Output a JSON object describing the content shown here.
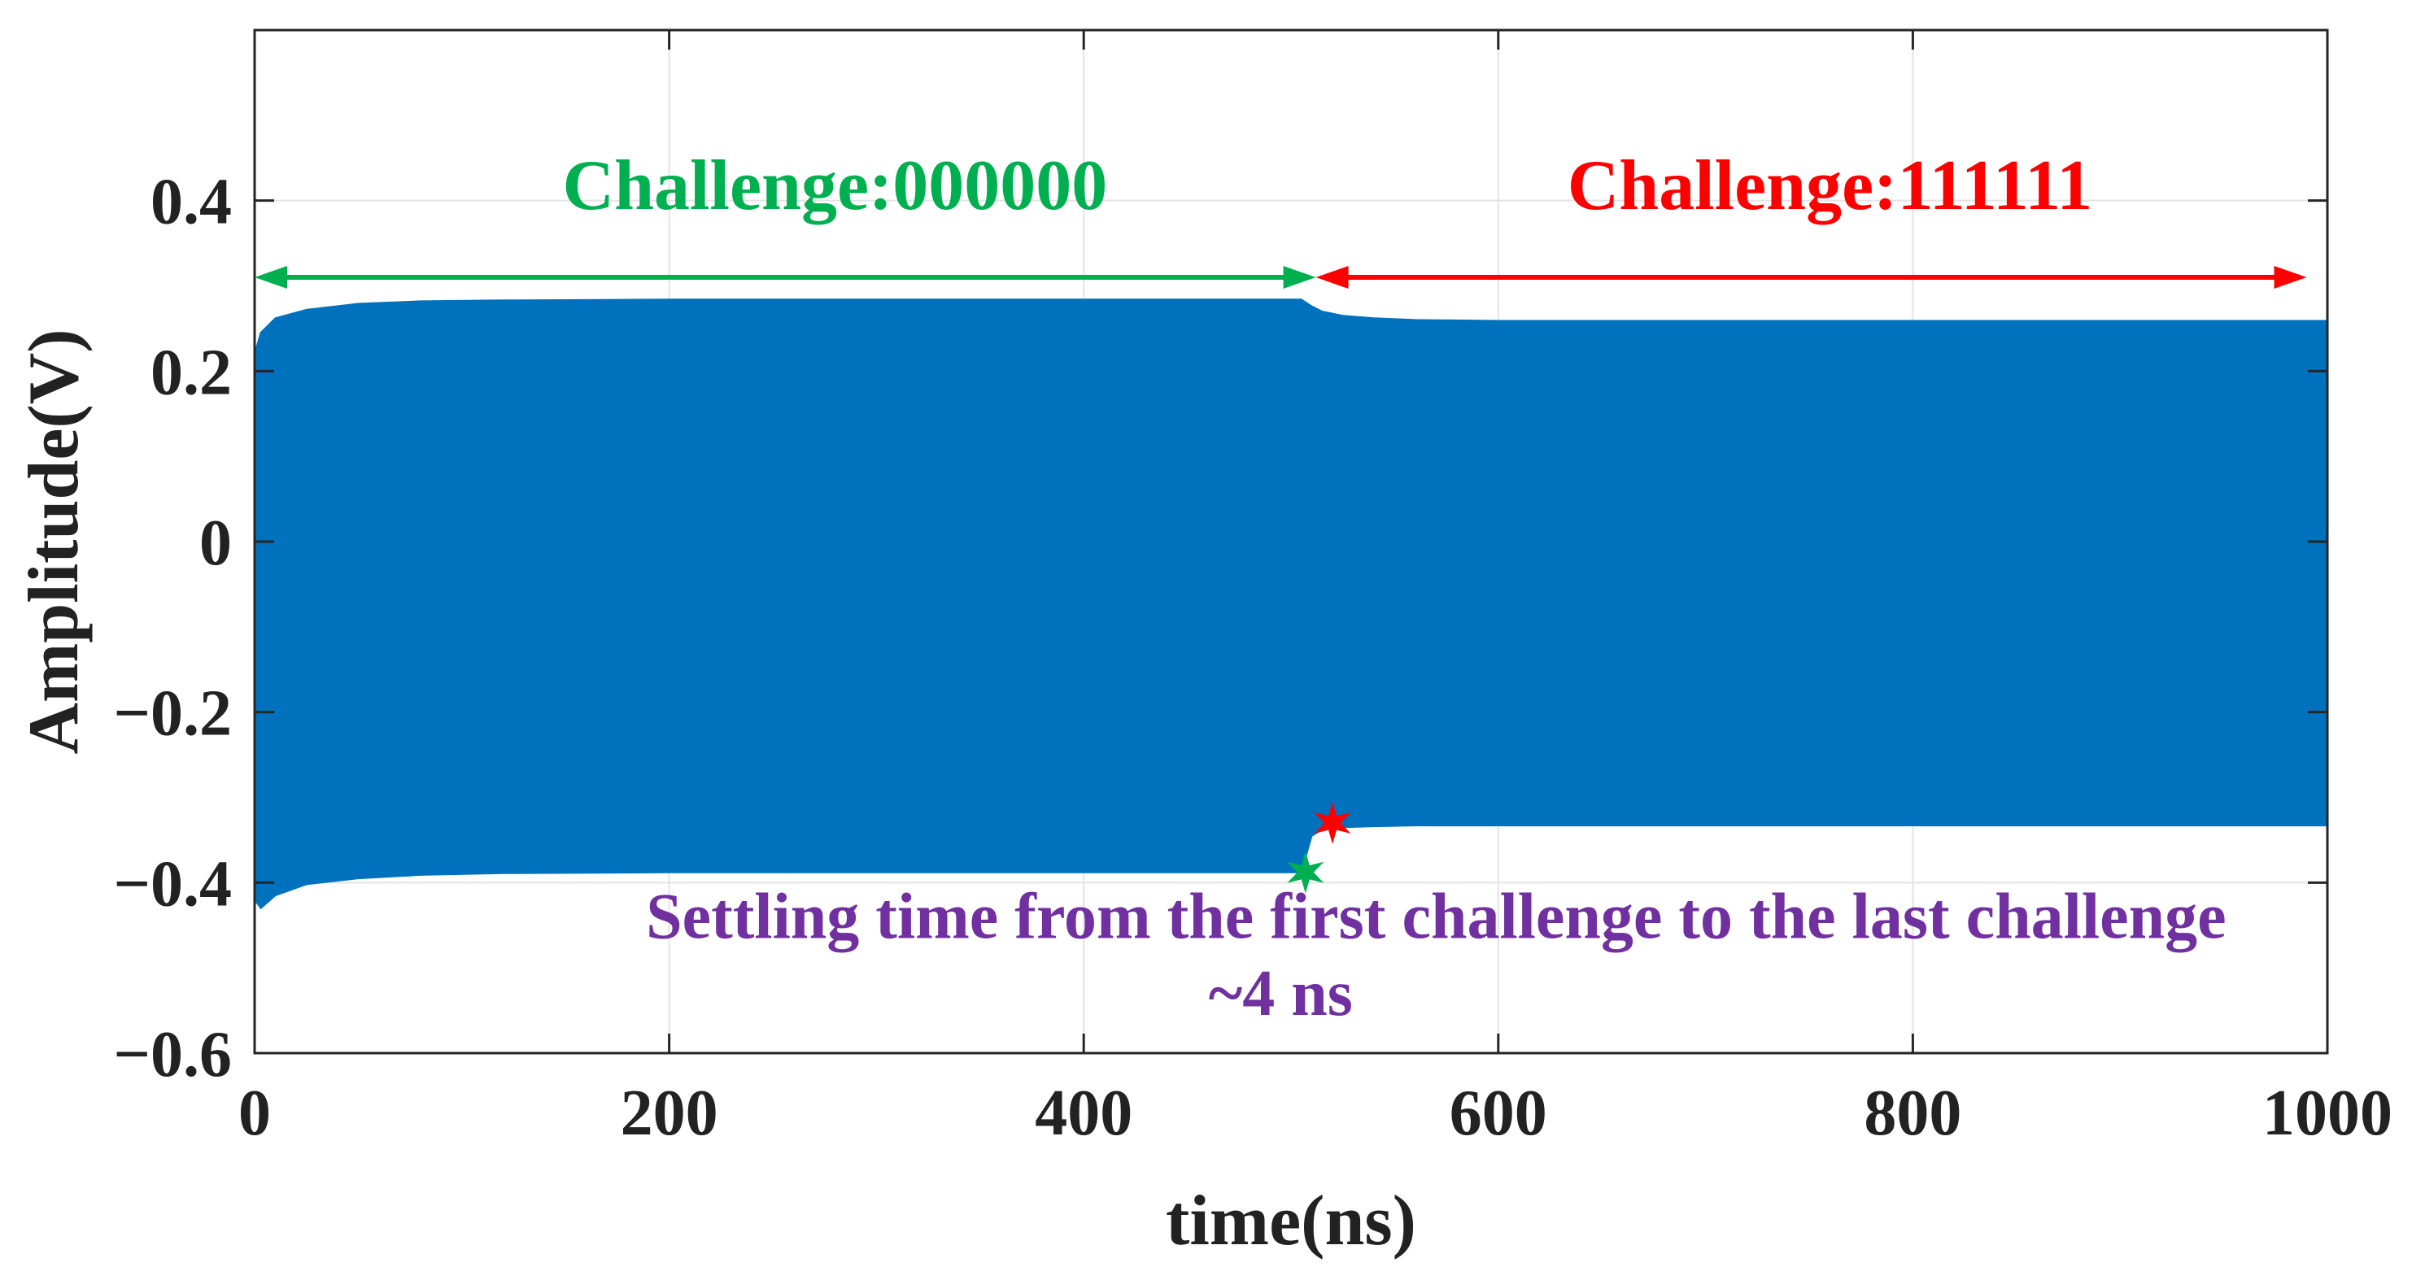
{
  "chart_data": {
    "type": "area",
    "title": "",
    "xlabel": "time(ns)",
    "ylabel": "Amplitude(V)",
    "xlim": [
      0,
      1000
    ],
    "ylim": [
      -0.6,
      0.6
    ],
    "x_ticks": [
      0,
      200,
      400,
      600,
      800,
      1000
    ],
    "x_tick_labels": [
      "0",
      "200",
      "400",
      "600",
      "800",
      "1000"
    ],
    "y_ticks": [
      -0.6,
      -0.4,
      -0.2,
      0,
      0.2,
      0.4
    ],
    "y_tick_labels": [
      "−0.6",
      "−0.4",
      "−0.2",
      "0",
      "0.2",
      "0.4"
    ],
    "grid": true,
    "series": [
      {
        "color": "#0072BD",
        "upper_envelope": {
          "x": [
            0,
            3,
            10,
            25,
            50,
            80,
            120,
            200,
            300,
            400,
            505,
            510,
            515,
            525,
            540,
            560,
            600,
            700,
            800,
            900,
            1000
          ],
          "y": [
            0.22,
            0.245,
            0.262,
            0.272,
            0.279,
            0.282,
            0.283,
            0.284,
            0.284,
            0.284,
            0.284,
            0.276,
            0.27,
            0.265,
            0.262,
            0.26,
            0.259,
            0.259,
            0.259,
            0.259,
            0.259
          ]
        },
        "lower_envelope": {
          "x": [
            0,
            3,
            10,
            25,
            50,
            80,
            120,
            200,
            300,
            400,
            505,
            510,
            515,
            525,
            540,
            560,
            600,
            700,
            800,
            900,
            1000
          ],
          "y": [
            -0.42,
            -0.43,
            -0.415,
            -0.402,
            -0.395,
            -0.391,
            -0.389,
            -0.388,
            -0.388,
            -0.388,
            -0.388,
            -0.345,
            -0.338,
            -0.335,
            -0.334,
            -0.333,
            -0.333,
            -0.333,
            -0.333,
            -0.333,
            -0.333
          ]
        }
      }
    ],
    "annotations": [
      {
        "text": "Challenge:000000",
        "color": "#00B050",
        "x": 280,
        "y": 0.39,
        "arrow": {
          "x1": 0,
          "x2": 512,
          "y": 0.31
        }
      },
      {
        "text": "Challenge:111111",
        "color": "#FF0000",
        "x": 760,
        "y": 0.39,
        "arrow": {
          "x1": 512,
          "x2": 990,
          "y": 0.31
        }
      },
      {
        "text": "Settling time from the first challenge to the last challenge",
        "color": "#7030A0",
        "x": 570,
        "y": -0.465
      },
      {
        "text": "~4 ns",
        "color": "#7030A0",
        "x": 495,
        "y": -0.555
      }
    ],
    "markers": [
      {
        "shape": "star",
        "color": "#00B050",
        "x": 507,
        "y": -0.388
      },
      {
        "shape": "star",
        "color": "#FF0000",
        "x": 520,
        "y": -0.33
      }
    ]
  }
}
